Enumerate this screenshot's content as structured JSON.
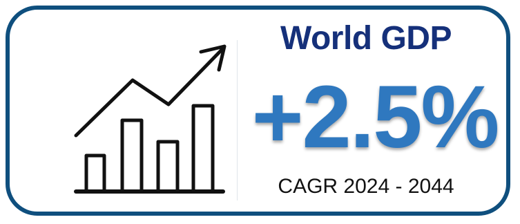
{
  "card": {
    "title": "World GDP",
    "value": "+2.5%",
    "subtitle": "CAGR 2024 - 2044"
  },
  "icon": "growth-bar-chart-with-arrow",
  "colors": {
    "border": "#0f4f7e",
    "title": "#15307a",
    "value": "#2f78bf",
    "icon": "#111111"
  }
}
